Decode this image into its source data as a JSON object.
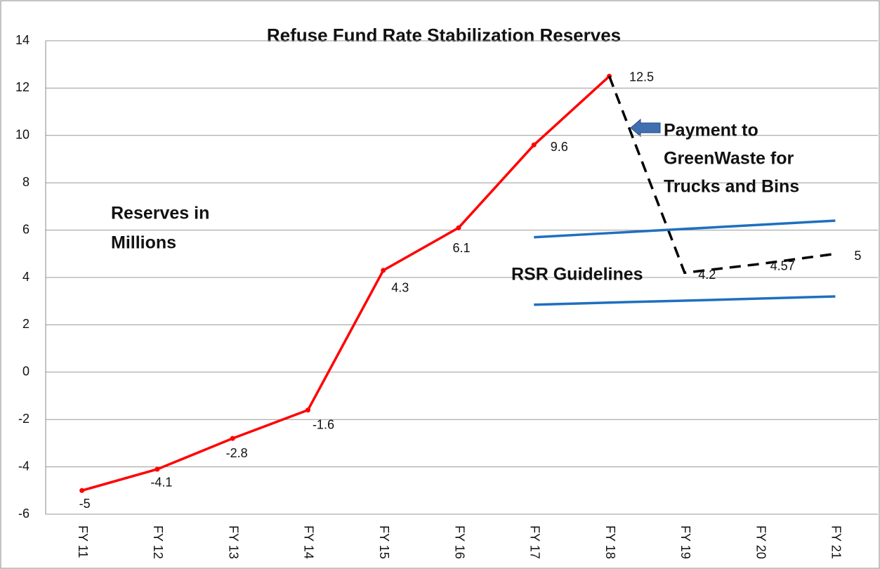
{
  "chart_data": {
    "type": "line",
    "title": "Refuse Fund Rate Stabilization Reserves",
    "categories": [
      "FY 11",
      "FY 12",
      "FY 13",
      "FY 14",
      "FY 15",
      "FY 16",
      "FY 17",
      "FY 18",
      "FY 19",
      "FY 20",
      "FY 21"
    ],
    "series": [
      {
        "color": "#ff0000",
        "dash": false,
        "markers": true,
        "labels": true,
        "values": [
          -5,
          -4.1,
          -2.8,
          -1.6,
          4.3,
          6.1,
          9.6,
          12.5,
          null,
          null,
          null
        ]
      },
      {
        "color": "#000000",
        "dash": true,
        "markers": false,
        "labels": true,
        "values": [
          null,
          null,
          null,
          null,
          null,
          null,
          null,
          12.5,
          4.2,
          4.57,
          5
        ]
      },
      {
        "color": "#1f6fbf",
        "dash": false,
        "markers": false,
        "labels": false,
        "values": [
          null,
          null,
          null,
          null,
          null,
          null,
          5.7,
          5.875,
          6.05,
          6.225,
          6.4
        ]
      },
      {
        "color": "#1f6fbf",
        "dash": false,
        "markers": false,
        "labels": false,
        "values": [
          null,
          null,
          null,
          null,
          null,
          null,
          2.85,
          2.94,
          3.02,
          3.11,
          3.2
        ]
      }
    ],
    "ylim": [
      -6,
      14
    ],
    "yticks": [
      -6,
      -4,
      -2,
      0,
      2,
      4,
      6,
      8,
      10,
      12,
      14
    ],
    "grid": true,
    "annotations": [
      {
        "lines": [
          "Reserves in",
          "Millions"
        ]
      },
      {
        "lines": [
          "Payment to",
          "GreenWaste for",
          "Trucks and Bins"
        ]
      },
      {
        "lines": [
          "RSR Guidelines"
        ]
      }
    ]
  }
}
